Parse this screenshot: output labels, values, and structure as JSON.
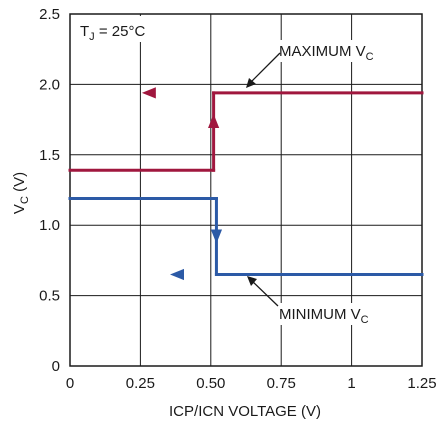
{
  "chart_data": {
    "type": "line",
    "xlabel": "ICP/ICN VOLTAGE (V)",
    "ylabel": {
      "main": "V",
      "sub": "C",
      "unit": " (V)"
    },
    "xlim": [
      0,
      1.25
    ],
    "ylim": [
      0,
      2.5
    ],
    "xticks": [
      "0",
      "0.25",
      "0.50",
      "0.75",
      "1",
      "1.25"
    ],
    "yticks": [
      "0",
      "0.5",
      "1.0",
      "1.5",
      "2.0",
      "2.5"
    ],
    "grid": true,
    "condition": {
      "main": "T",
      "sub": "J",
      "rest": " = 25°C"
    },
    "series": [
      {
        "name": "MAXIMUM V_C",
        "label_main": "MAXIMUM V",
        "label_sub": "C",
        "color": "#a0173e",
        "lower_branch": {
          "x": [
            0,
            0.51
          ],
          "y": [
            1.39,
            1.39
          ]
        },
        "transition": {
          "x": [
            0.51,
            0.51
          ],
          "y": [
            1.39,
            1.94
          ]
        },
        "upper_branch": {
          "x": [
            0.51,
            1.25
          ],
          "y": [
            1.94,
            1.94
          ]
        },
        "hysteresis_return": {
          "x": [
            0.51,
            0
          ],
          "y": [
            1.94,
            1.94
          ]
        }
      },
      {
        "name": "MINIMUM V_C",
        "label_main": "MINIMUM V",
        "label_sub": "C",
        "color": "#2c5aa6",
        "upper_branch": {
          "x": [
            0,
            0.52
          ],
          "y": [
            1.19,
            1.19
          ]
        },
        "transition": {
          "x": [
            0.52,
            0.52
          ],
          "y": [
            1.19,
            0.65
          ]
        },
        "lower_branch": {
          "x": [
            0.52,
            1.25
          ],
          "y": [
            0.65,
            0.65
          ]
        },
        "hysteresis_return": {
          "x": [
            0.52,
            0
          ],
          "y": [
            0.65,
            0.65
          ]
        }
      }
    ]
  }
}
